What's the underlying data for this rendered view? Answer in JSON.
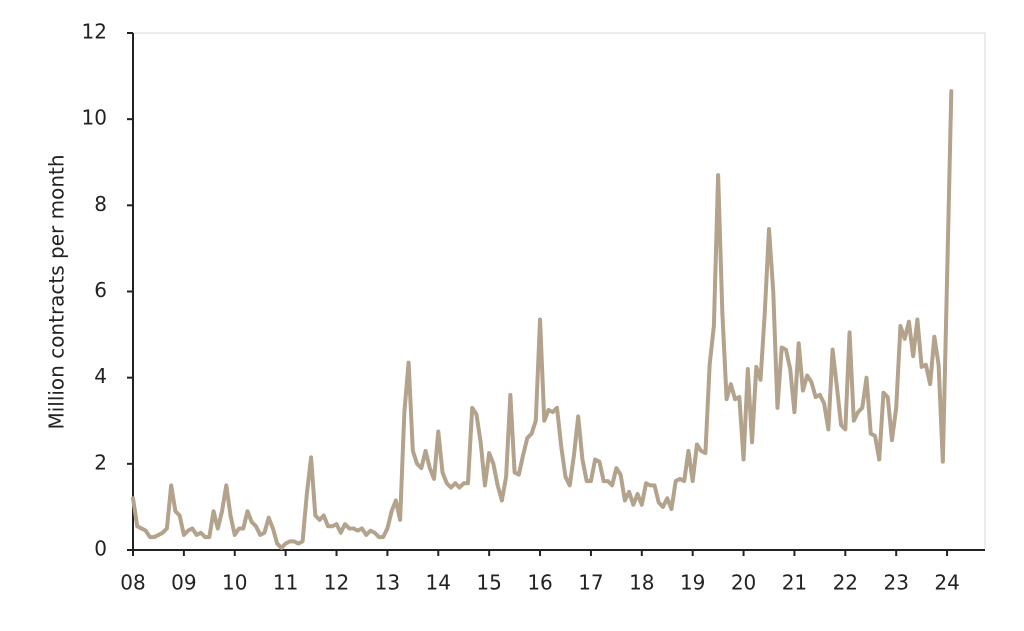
{
  "chart_data": {
    "type": "line",
    "y_label": "Million contracts per month",
    "categories": [
      "08",
      null,
      null,
      null,
      null,
      null,
      null,
      null,
      null,
      null,
      null,
      null,
      "09",
      null,
      null,
      null,
      null,
      null,
      null,
      null,
      null,
      null,
      null,
      null,
      "10",
      null,
      null,
      null,
      null,
      null,
      null,
      null,
      null,
      null,
      null,
      null,
      "11",
      null,
      null,
      null,
      null,
      null,
      null,
      null,
      null,
      null,
      null,
      null,
      "12",
      null,
      null,
      null,
      null,
      null,
      null,
      null,
      null,
      null,
      null,
      null,
      "13",
      null,
      null,
      null,
      null,
      null,
      null,
      null,
      null,
      null,
      null,
      null,
      "14",
      null,
      null,
      null,
      null,
      null,
      null,
      null,
      null,
      null,
      null,
      null,
      "15",
      null,
      null,
      null,
      null,
      null,
      null,
      null,
      null,
      null,
      null,
      null,
      "16",
      null,
      null,
      null,
      null,
      null,
      null,
      null,
      null,
      null,
      null,
      null,
      "17",
      null,
      null,
      null,
      null,
      null,
      null,
      null,
      null,
      null,
      null,
      null,
      "18",
      null,
      null,
      null,
      null,
      null,
      null,
      null,
      null,
      null,
      null,
      null,
      "19",
      null,
      null,
      null,
      null,
      null,
      null,
      null,
      null,
      null,
      null,
      null,
      "20",
      null,
      null,
      null,
      null,
      null,
      null,
      null,
      null,
      null,
      null,
      null,
      "21",
      null,
      null,
      null,
      null,
      null,
      null,
      null,
      null,
      null,
      null,
      null,
      "22",
      null,
      null,
      null,
      null,
      null,
      null,
      null,
      null,
      null,
      null,
      null,
      "23",
      null,
      null,
      null,
      null,
      null,
      null,
      null,
      null,
      null,
      null,
      null,
      "24",
      null
    ],
    "values": [
      1.2,
      0.55,
      0.5,
      0.45,
      0.3,
      0.3,
      0.35,
      0.4,
      0.5,
      1.5,
      0.9,
      0.8,
      0.35,
      0.45,
      0.5,
      0.35,
      0.4,
      0.3,
      0.3,
      0.9,
      0.5,
      0.9,
      1.5,
      0.8,
      0.35,
      0.5,
      0.5,
      0.9,
      0.65,
      0.55,
      0.35,
      0.4,
      0.75,
      0.5,
      0.15,
      0.05,
      0.15,
      0.2,
      0.2,
      0.15,
      0.2,
      1.3,
      2.15,
      0.8,
      0.7,
      0.8,
      0.55,
      0.55,
      0.6,
      0.4,
      0.6,
      0.5,
      0.5,
      0.45,
      0.5,
      0.35,
      0.45,
      0.4,
      0.3,
      0.3,
      0.5,
      0.9,
      1.15,
      0.7,
      3.2,
      4.35,
      2.3,
      2.0,
      1.9,
      2.3,
      1.9,
      1.65,
      2.75,
      1.8,
      1.55,
      1.45,
      1.55,
      1.45,
      1.55,
      1.55,
      3.3,
      3.15,
      2.5,
      1.5,
      2.25,
      2.0,
      1.5,
      1.15,
      1.7,
      3.6,
      1.8,
      1.75,
      2.2,
      2.6,
      2.7,
      3.0,
      5.35,
      3.0,
      3.25,
      3.2,
      3.3,
      2.4,
      1.7,
      1.5,
      2.2,
      3.1,
      2.1,
      1.6,
      1.6,
      2.1,
      2.05,
      1.6,
      1.6,
      1.5,
      1.9,
      1.75,
      1.15,
      1.35,
      1.05,
      1.3,
      1.05,
      1.55,
      1.5,
      1.5,
      1.1,
      1.0,
      1.2,
      0.95,
      1.6,
      1.65,
      1.6,
      2.3,
      1.6,
      2.45,
      2.3,
      2.25,
      4.3,
      5.2,
      8.7,
      5.5,
      3.5,
      3.85,
      3.5,
      3.55,
      2.1,
      4.2,
      2.5,
      4.25,
      3.95,
      5.5,
      7.45,
      6.0,
      3.3,
      4.7,
      4.65,
      4.2,
      3.2,
      4.8,
      3.7,
      4.05,
      3.9,
      3.55,
      3.6,
      3.4,
      2.8,
      4.65,
      3.8,
      2.9,
      2.8,
      5.05,
      3.0,
      3.2,
      3.3,
      4.0,
      2.7,
      2.65,
      2.1,
      3.65,
      3.55,
      2.55,
      3.3,
      5.2,
      4.9,
      5.3,
      4.5,
      5.35,
      4.25,
      4.3,
      3.85,
      4.95,
      4.3,
      2.05,
      6.3,
      10.65
    ],
    "color": "#b3a28c",
    "ylim": [
      0,
      12
    ],
    "yticks": [
      0,
      2,
      4,
      6,
      8,
      10,
      12
    ]
  }
}
